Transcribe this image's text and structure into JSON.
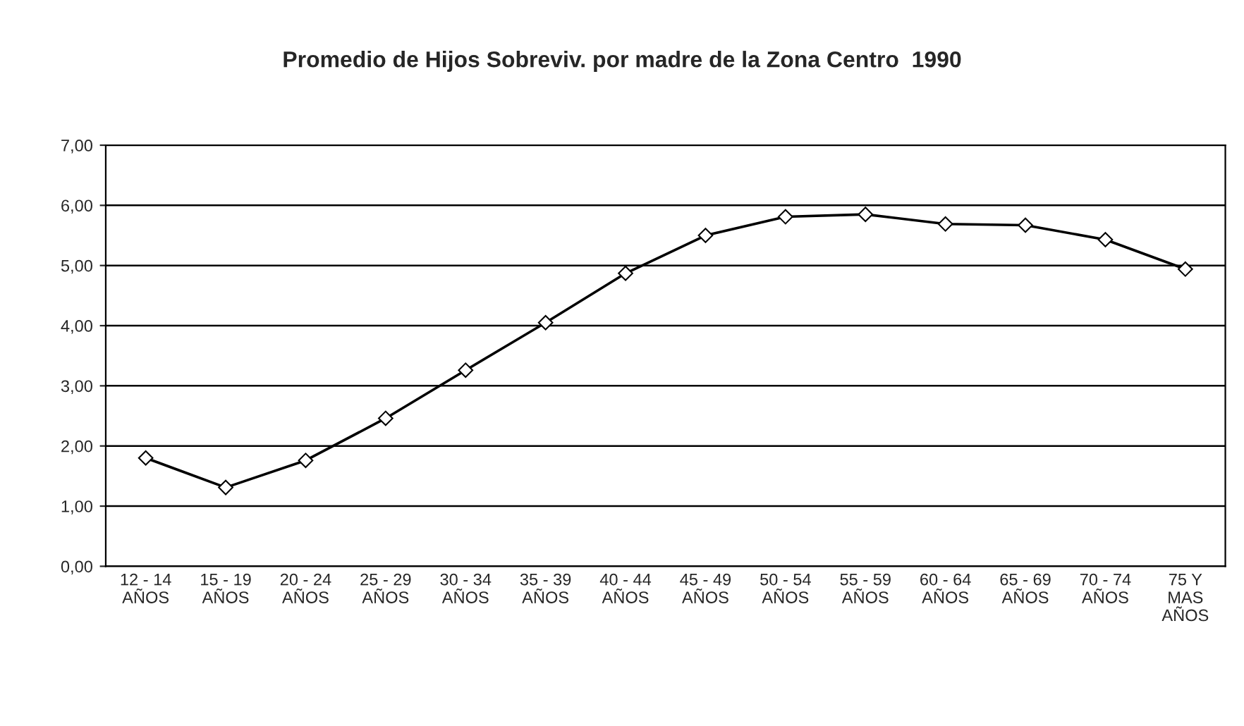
{
  "chart_data": {
    "type": "line",
    "title": "Promedio de Hijos Sobreviv. por madre de la Zona Centro  1990",
    "categories": [
      "12 - 14\nAÑOS",
      "15 - 19\nAÑOS",
      "20 - 24\nAÑOS",
      "25 - 29\nAÑOS",
      "30 - 34\nAÑOS",
      "35 - 39\nAÑOS",
      "40 - 44\nAÑOS",
      "45 - 49\nAÑOS",
      "50 - 54\nAÑOS",
      "55 - 59\nAÑOS",
      "60 - 64\nAÑOS",
      "65 - 69\nAÑOS",
      "70 - 74\nAÑOS",
      "75 Y\nMAS\nAÑOS"
    ],
    "series": [
      {
        "color": "#000000",
        "values": [
          1.8,
          1.31,
          1.76,
          2.46,
          3.26,
          4.05,
          4.87,
          5.5,
          5.81,
          5.85,
          5.69,
          5.67,
          5.43,
          4.94
        ]
      }
    ],
    "ylim": [
      0,
      7
    ],
    "yticks": [
      {
        "value": 0,
        "label": "0,00"
      },
      {
        "value": 1,
        "label": "1,00"
      },
      {
        "value": 2,
        "label": "2,00"
      },
      {
        "value": 3,
        "label": "3,00"
      },
      {
        "value": 4,
        "label": "4,00"
      },
      {
        "value": 5,
        "label": "5,00"
      },
      {
        "value": 6,
        "label": "6,00"
      },
      {
        "value": 7,
        "label": "7,00"
      }
    ],
    "grid": "y",
    "marker": "diamond",
    "line_style": "solid"
  }
}
